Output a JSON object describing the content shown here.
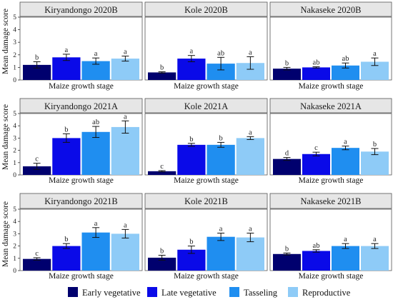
{
  "chart_data": {
    "type": "bar",
    "ylabel": "Mean damage score",
    "xlabel": "Maize growth stage",
    "ylim": [
      0,
      5
    ],
    "yticks": [
      0,
      1,
      2,
      3,
      4,
      5
    ],
    "grid": false,
    "legend_placement": "bottom",
    "categories": [
      "Early vegetative",
      "Late vegetative",
      "Tasseling",
      "Reproductive"
    ],
    "colors": [
      "#00006e",
      "#0a0ae8",
      "#1f8ef0",
      "#8ecbf7"
    ],
    "panels": [
      {
        "title": "Kiryandongo 2020B",
        "values": [
          1.2,
          1.8,
          1.5,
          1.7
        ],
        "errors": [
          0.25,
          0.25,
          0.25,
          0.2
        ],
        "letters": [
          "b",
          "a",
          "a",
          "a"
        ]
      },
      {
        "title": "Kole 2020B",
        "values": [
          0.6,
          1.7,
          1.3,
          1.35
        ],
        "errors": [
          0.05,
          0.25,
          0.5,
          0.5
        ],
        "letters": [
          "b",
          "a",
          "ab",
          "a"
        ]
      },
      {
        "title": "Nakaseke 2020B",
        "values": [
          0.9,
          1.0,
          1.15,
          1.45
        ],
        "errors": [
          0.1,
          0.05,
          0.2,
          0.3
        ],
        "letters": [
          "b",
          "ab",
          "ab",
          "a"
        ]
      },
      {
        "title": "Kiryandongo 2021A",
        "values": [
          0.7,
          3.0,
          3.5,
          3.9
        ],
        "errors": [
          0.25,
          0.35,
          0.45,
          0.5
        ],
        "letters": [
          "c",
          "b",
          "ab",
          "a"
        ]
      },
      {
        "title": "Kole 2021A",
        "values": [
          0.3,
          2.45,
          2.45,
          3.0
        ],
        "errors": [
          0.05,
          0.12,
          0.2,
          0.12
        ],
        "letters": [
          "c",
          "b",
          "b",
          "a"
        ]
      },
      {
        "title": "Nakaseke 2021A",
        "values": [
          1.3,
          1.7,
          2.2,
          1.9
        ],
        "errors": [
          0.12,
          0.15,
          0.15,
          0.25
        ],
        "letters": [
          "d",
          "c",
          "a",
          "b"
        ]
      },
      {
        "title": "Kiryandongo 2021B",
        "values": [
          0.95,
          2.0,
          3.1,
          3.0
        ],
        "errors": [
          0.1,
          0.2,
          0.4,
          0.35
        ],
        "letters": [
          "c",
          "b",
          "a",
          "a"
        ]
      },
      {
        "title": "Kole 2021B",
        "values": [
          1.05,
          1.7,
          2.75,
          2.7
        ],
        "errors": [
          0.2,
          0.3,
          0.3,
          0.35
        ],
        "letters": [
          "b",
          "b",
          "a",
          "a"
        ]
      },
      {
        "title": "Nakaseke 2021B",
        "values": [
          1.35,
          1.6,
          2.0,
          2.0
        ],
        "errors": [
          0.08,
          0.1,
          0.2,
          0.2
        ],
        "letters": [
          "b",
          "ab",
          "a",
          "a"
        ]
      }
    ]
  }
}
